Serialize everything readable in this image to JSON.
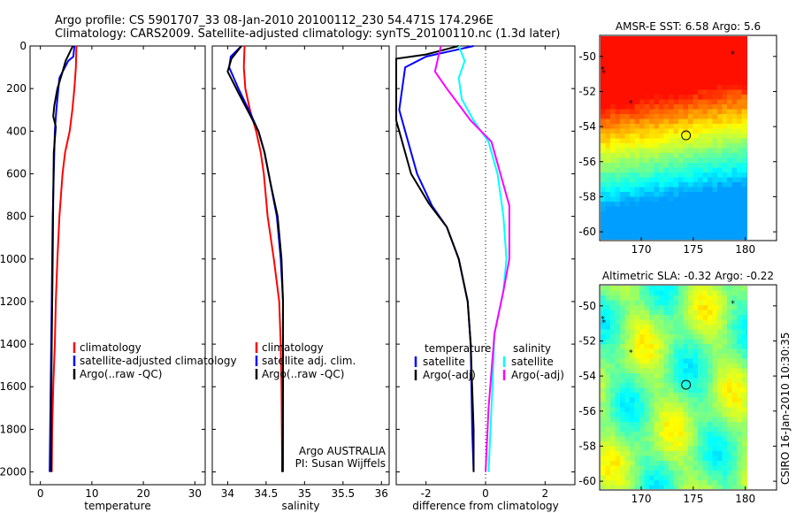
{
  "header": {
    "line1": "Argo profile: CS 5901707_33 08-Jan-2010 20100112_230 54.471S 174.296E",
    "line2": "Climatology: CARS2009. Satellite-adjusted climatology: synTS_20100110.nc (1.3d later)"
  },
  "colors": {
    "climatology": "#ff0000",
    "satellite": "#0000ff",
    "argo": "#000000",
    "sal_satellite": "#00ffff",
    "sal_argo": "#ff00ff",
    "zero_line": "#000000"
  },
  "side_text": "CSIRO 16-Jan-2010 10:30:35",
  "chart_data": [
    {
      "type": "line",
      "id": "temperature",
      "xlabel": "temperature",
      "ylabel": "",
      "xlim": [
        -2,
        32
      ],
      "ylim": [
        0,
        2060
      ],
      "y_reversed": true,
      "xticks": [
        0,
        10,
        20,
        30
      ],
      "yticks": [
        0,
        200,
        400,
        600,
        800,
        1000,
        1200,
        1400,
        1600,
        1800,
        2000
      ],
      "legend": [
        "climatology",
        "satellite-adjusted climatology",
        "Argo(..raw -QC)"
      ],
      "series": [
        {
          "name": "climatology",
          "color": "#ff0000",
          "x": [
            7.0,
            6.9,
            6.6,
            6.2,
            5.7,
            4.8,
            4.3,
            3.7,
            3.3,
            3.0,
            2.8,
            2.5,
            2.3,
            2.2
          ],
          "y": [
            0,
            100,
            200,
            300,
            400,
            500,
            600,
            800,
            1000,
            1200,
            1400,
            1600,
            1800,
            2000
          ]
        },
        {
          "name": "satellite-adjusted climatology",
          "color": "#0000ff",
          "x": [
            6.6,
            6.4,
            5.4,
            3.7,
            3.1,
            2.8,
            2.6,
            2.4,
            2.3,
            2.2,
            2.1,
            2.0,
            1.9,
            1.8
          ],
          "y": [
            0,
            50,
            70,
            150,
            300,
            400,
            600,
            800,
            1000,
            1200,
            1400,
            1600,
            1800,
            2000
          ]
        },
        {
          "name": "Argo(..raw -QC)",
          "color": "#000000",
          "x": [
            6.3,
            5.5,
            4.9,
            4.2,
            3.3,
            2.7,
            2.5,
            3.0,
            2.6,
            2.5,
            2.4,
            2.2,
            2.1,
            2.1,
            2.1
          ],
          "y": [
            0,
            40,
            70,
            130,
            200,
            280,
            330,
            380,
            500,
            700,
            1000,
            1400,
            1700,
            1900,
            2000
          ]
        }
      ]
    },
    {
      "type": "line",
      "id": "salinity",
      "xlabel": "salinity",
      "ylabel": "",
      "xlim": [
        33.8,
        36.1
      ],
      "ylim": [
        0,
        2060
      ],
      "y_reversed": true,
      "xticks": [
        34,
        34.5,
        35,
        35.5,
        36
      ],
      "yticks": [
        0,
        200,
        400,
        600,
        800,
        1000,
        1200,
        1400,
        1600,
        1800,
        2000
      ],
      "legend": [
        "climatology",
        "satellite adj. clim.",
        "Argo(..raw -QC)"
      ],
      "annotation": [
        "Argo AUSTRALIA",
        "PI: Susan Wijffels"
      ],
      "series": [
        {
          "name": "climatology",
          "color": "#ff0000",
          "x": [
            34.22,
            34.21,
            34.23,
            34.29,
            34.37,
            34.43,
            34.47,
            34.52,
            34.6,
            34.67,
            34.69,
            34.7,
            34.71
          ],
          "y": [
            0,
            100,
            200,
            300,
            400,
            500,
            600,
            800,
            1000,
            1200,
            1400,
            1600,
            2000
          ]
        },
        {
          "name": "satellite adj. clim.",
          "color": "#0000ff",
          "x": [
            34.18,
            34.04,
            34.02,
            34.14,
            34.3,
            34.4,
            34.48,
            34.56,
            34.64,
            34.69,
            34.72,
            34.72,
            34.72
          ],
          "y": [
            0,
            50,
            100,
            200,
            320,
            400,
            500,
            650,
            800,
            1000,
            1200,
            1600,
            2000
          ]
        },
        {
          "name": "Argo(..raw -QC)",
          "color": "#000000",
          "x": [
            34.18,
            34.05,
            34.0,
            34.14,
            34.3,
            34.4,
            34.48,
            34.56,
            34.65,
            34.7,
            34.72,
            34.72,
            34.71
          ],
          "y": [
            0,
            60,
            120,
            220,
            330,
            400,
            500,
            650,
            800,
            1000,
            1200,
            1600,
            2000
          ]
        }
      ]
    },
    {
      "type": "line",
      "id": "difference",
      "xlabel": "difference from climatology",
      "ylabel": "",
      "xlim": [
        -3.0,
        3.0
      ],
      "ylim": [
        0,
        2060
      ],
      "y_reversed": true,
      "xticks": [
        -2,
        0,
        2
      ],
      "yticks": [
        0,
        200,
        400,
        600,
        800,
        1000,
        1200,
        1400,
        1600,
        1800,
        2000
      ],
      "legend_left": [
        "temperature",
        "satellite",
        "Argo(-adj)"
      ],
      "legend_right": [
        "salinity",
        "satellite",
        "Argo(-adj)"
      ],
      "series": [
        {
          "name": "temperature satellite",
          "color": "#0000ff",
          "x": [
            -0.4,
            -2.0,
            -2.7,
            -2.9,
            -2.7,
            -2.3,
            -1.8,
            -1.3,
            -0.9,
            -0.6,
            -0.5,
            -0.45,
            -0.4
          ],
          "y": [
            0,
            50,
            100,
            300,
            400,
            600,
            750,
            850,
            1000,
            1200,
            1400,
            1800,
            2000
          ]
        },
        {
          "name": "temperature Argo(-adj)",
          "color": "#000000",
          "x": [
            -0.9,
            -2.0,
            -3.0,
            -3.0,
            -2.9,
            -2.5,
            -1.9,
            -1.3,
            -0.9,
            -0.6,
            -0.5,
            -0.4,
            -0.4
          ],
          "y": [
            0,
            40,
            60,
            350,
            400,
            600,
            740,
            850,
            1000,
            1200,
            1400,
            1800,
            2000
          ]
        },
        {
          "name": "salinity satellite",
          "color": "#00ffff",
          "x": [
            -0.9,
            -0.7,
            -0.9,
            -0.8,
            -0.4,
            0.1,
            0.4,
            0.6,
            0.7,
            0.6,
            0.3,
            0.2,
            0.1
          ],
          "y": [
            0,
            70,
            150,
            250,
            350,
            450,
            600,
            800,
            1000,
            1150,
            1350,
            1700,
            2000
          ]
        },
        {
          "name": "salinity Argo(-adj)",
          "color": "#ff00ff",
          "x": [
            -1.5,
            -1.6,
            -1.7,
            -1.3,
            -0.5,
            0.2,
            0.5,
            0.8,
            0.8,
            0.6,
            0.3,
            0.1,
            0.0
          ],
          "y": [
            0,
            60,
            120,
            200,
            350,
            450,
            600,
            750,
            1000,
            1150,
            1350,
            1700,
            2000
          ]
        }
      ]
    },
    {
      "type": "heatmap",
      "id": "amsr_sst",
      "title": "AMSR-E SST: 6.58 Argo: 5.6",
      "xlim": [
        166,
        183
      ],
      "ylim": [
        -60.5,
        -48.8
      ],
      "xticks": [
        170,
        175,
        180
      ],
      "yticks": [
        -50,
        -52,
        -54,
        -56,
        -58,
        -60
      ],
      "argo_marker": [
        174.3,
        -54.5
      ],
      "floats": [
        [
          166.3,
          -50.7
        ],
        [
          166.4,
          -50.9
        ],
        [
          169.0,
          -52.6
        ],
        [
          178.8,
          -49.8
        ]
      ]
    },
    {
      "type": "heatmap",
      "id": "altimetric_sla",
      "title": "Altimetric SLA: -0.32 Argo: -0.22",
      "xlim": [
        166,
        183
      ],
      "ylim": [
        -60.5,
        -48.8
      ],
      "xticks": [
        170,
        175,
        180
      ],
      "yticks": [
        -50,
        -52,
        -54,
        -56,
        -58,
        -60
      ],
      "argo_marker": [
        174.3,
        -54.5
      ],
      "floats": [
        [
          166.3,
          -50.7
        ],
        [
          166.4,
          -50.9
        ],
        [
          169.0,
          -52.6
        ],
        [
          178.8,
          -49.8
        ]
      ]
    }
  ]
}
